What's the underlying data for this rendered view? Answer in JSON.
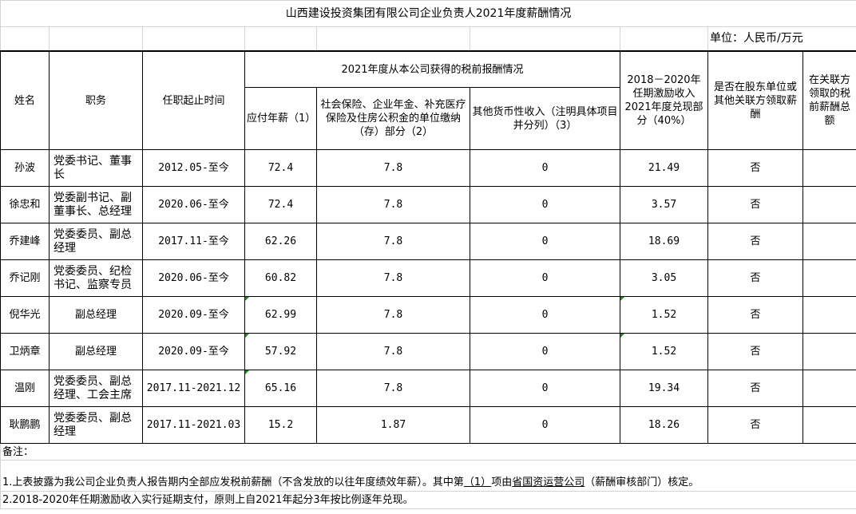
{
  "title": "山西建设投资集团有限公司企业负责人2021年度薪酬情况",
  "unit": "单位：人民币/万元",
  "headers": {
    "name": "姓名",
    "position": "职务",
    "tenure": "任职起止时间",
    "group": "2021年度从本公司获得的税前报酬情况",
    "salary": "应付年薪（1）",
    "insurance": "社会保险、企业年金、补充医疗保险及住房公积金的单位缴纳（存）部分（2）",
    "other": "其他货币性收入（注明具体项目并分列）（3）",
    "incentive": "2018－2020年任期激励收入2021年度兑现部分（40%）",
    "shareholder": "是否在股东单位或其他关联方领取薪酬",
    "related_total": "在关联方领取的税前薪酬总额"
  },
  "rows": [
    {
      "name": "孙波",
      "position": "党委书记、董事长",
      "tenure": "2012.05-至今",
      "salary": "72.4",
      "insurance": "7.8",
      "other": "0",
      "incentive": "21.49",
      "shareholder": "否",
      "related_total": ""
    },
    {
      "name": "徐忠和",
      "position": "党委副书记、副董事长、总经理",
      "tenure": "2020.06-至今",
      "salary": "72.4",
      "insurance": "7.8",
      "other": "0",
      "incentive": "3.57",
      "shareholder": "否",
      "related_total": ""
    },
    {
      "name": "乔建峰",
      "position": "党委委员、副总经理",
      "tenure": "2017.11-至今",
      "salary": "62.26",
      "insurance": "7.8",
      "other": "0",
      "incentive": "18.69",
      "shareholder": "否",
      "related_total": ""
    },
    {
      "name": "乔记刚",
      "position": "党委委员、纪检书记、监察专员",
      "tenure": "2020.06-至今",
      "salary": "60.82",
      "insurance": "7.8",
      "other": "0",
      "incentive": "3.05",
      "shareholder": "否",
      "related_total": ""
    },
    {
      "name": "倪华光",
      "position": "副总经理",
      "tenure": "2020.09-至今",
      "salary": "62.99",
      "insurance": "7.8",
      "other": "0",
      "incentive": "1.52",
      "shareholder": "否",
      "related_total": ""
    },
    {
      "name": "卫炳章",
      "position": "副总经理",
      "tenure": "2020.09-至今",
      "salary": "57.92",
      "insurance": "7.8",
      "other": "0",
      "incentive": "1.52",
      "shareholder": "否",
      "related_total": ""
    },
    {
      "name": "温刚",
      "position": "党委委员、副总经理、工会主席",
      "tenure": "2017.11-2021.12",
      "salary": "65.16",
      "insurance": "7.8",
      "other": "0",
      "incentive": "19.34",
      "shareholder": "否",
      "related_total": ""
    },
    {
      "name": "耿鹏鹏",
      "position": "党委委员、副总经理",
      "tenure": "2017.11-2021.03",
      "salary": "15.2",
      "insurance": "1.87",
      "other": "0",
      "incentive": "18.26",
      "shareholder": "否",
      "related_total": ""
    }
  ],
  "notes": {
    "label": "备注：",
    "note1_a": "1.上表披露为我公司企业负责人报告期内全部应发税前薪酬（不含发放的以往年度绩效年薪）。其中第",
    "note1_item": "（1）",
    "note1_b": "项由",
    "note1_org": "省国资运营公司",
    "note1_c": "（薪酬审核部门）核定。",
    "note2": "2.2018-2020年任期激励收入实行延期支付，原则上自2021年起分3年按比例逐年兑现。"
  },
  "colors": {
    "grid": "#d4d4d4",
    "border": "#000000",
    "comment_marker": "#1a8a1a"
  }
}
